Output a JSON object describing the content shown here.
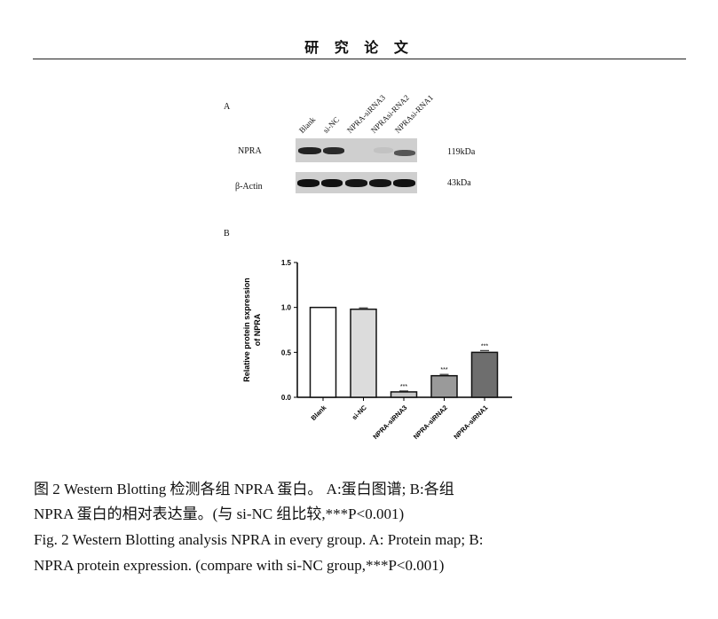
{
  "header": {
    "title": "研 究 论 文"
  },
  "panel_a": {
    "label": "A",
    "lanes": [
      "Blank",
      "si-NC",
      "NPRA-siRNA3",
      "NPRAsi-RNA2",
      "NPRAsi-RNA1"
    ],
    "rows": [
      {
        "name": "NPRA",
        "size": "119kDa"
      },
      {
        "name": "β-Actin",
        "size": "43kDa"
      }
    ]
  },
  "panel_b": {
    "label": "B"
  },
  "chart_data": {
    "type": "bar",
    "categories": [
      "Blank",
      "si-NC",
      "NPRA-siRNA3",
      "NPRA-siRNA2",
      "NPRA-siRNA1"
    ],
    "values": [
      1.0,
      0.98,
      0.06,
      0.24,
      0.5
    ],
    "errors": [
      0,
      0.015,
      0.01,
      0.015,
      0.02
    ],
    "annotations": [
      "",
      "",
      "***",
      "***",
      "***"
    ],
    "ylabel": "Relative protein sxpression of NPRA",
    "xlabel": "",
    "ylim": [
      0,
      1.5
    ],
    "yticks": [
      "0.0",
      "0.5",
      "1.0",
      "1.5"
    ],
    "fills": [
      "#ffffff",
      "#dcdcdc",
      "#c8c8c8",
      "#9a9a9a",
      "#6e6e6e"
    ]
  },
  "caption": {
    "cn_line1": "图 2  Western Blotting 检测各组 NPRA 蛋白。   A:蛋白图谱;   B:各组",
    "cn_line2": "NPRA 蛋白的相对表达量。(与 si-NC 组比较,***P<0.001)",
    "en_line1": "Fig. 2 Western Blotting analysis NPRA in every group. A: Protein map; B:",
    "en_line2": "NPRA protein expression. (compare with si-NC group,***P<0.001)"
  }
}
